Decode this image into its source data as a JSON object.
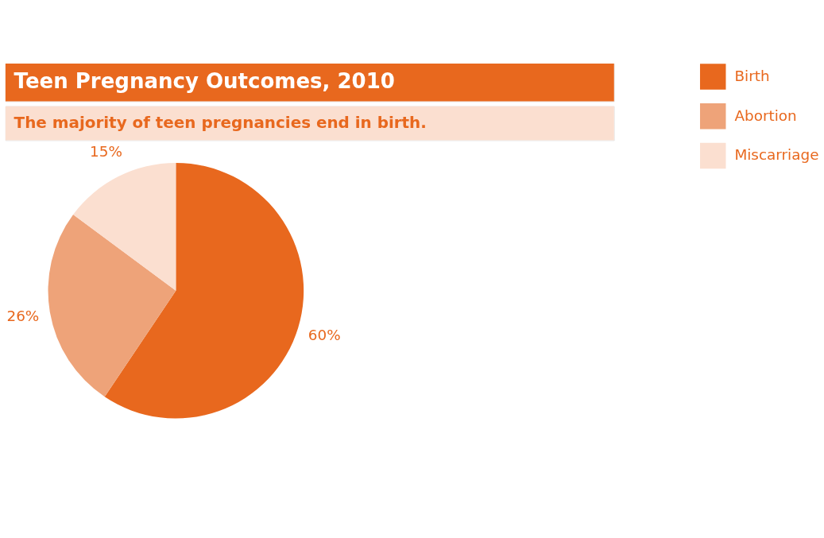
{
  "chart_data": {
    "type": "pie",
    "title": "Teen Pregnancy Outcomes, 2010",
    "subtitle": "The majority of teen pregnancies end in birth.",
    "categories": [
      "Birth",
      "Abortion",
      "Miscarriage"
    ],
    "values": [
      60,
      26,
      15
    ],
    "colors": [
      "#e8681e",
      "#eea379",
      "#fbdfd0"
    ],
    "value_labels": [
      "60%",
      "26%",
      "15%"
    ],
    "legend": "right"
  }
}
